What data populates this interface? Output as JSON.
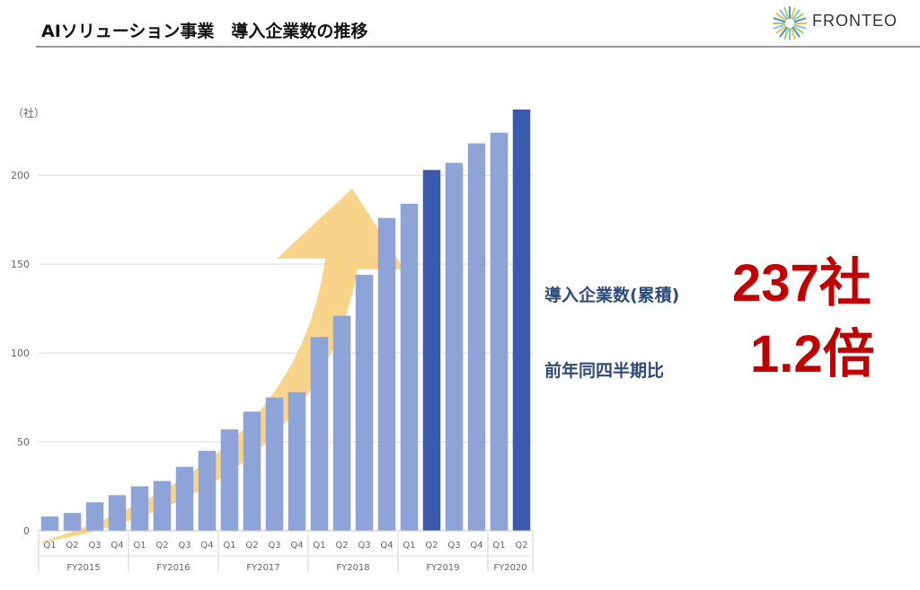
{
  "header": {
    "title": "AIソリューション事業　導入企業数の推移",
    "logo_text": "FRONTEO"
  },
  "stats": {
    "cumulative_label": "導入企業数(累積)",
    "cumulative_value": "237社",
    "yoy_label": "前年同四半期比",
    "yoy_value": "1.2倍"
  },
  "colors": {
    "bar": "#8ea4d9",
    "bar_highlight": "#3a5aad",
    "arrow": "#f7cf7e",
    "stat_value": "#c00000",
    "stat_label": "#2f4b7c"
  },
  "chart_data": {
    "type": "bar",
    "y_unit_label": "（社）",
    "ylim": [
      0,
      237
    ],
    "yticks": [
      0,
      50,
      100,
      150,
      200
    ],
    "grid": true,
    "categories": [
      "Q1",
      "Q2",
      "Q3",
      "Q4",
      "Q1",
      "Q2",
      "Q3",
      "Q4",
      "Q1",
      "Q2",
      "Q3",
      "Q4",
      "Q1",
      "Q2",
      "Q3",
      "Q4",
      "Q1",
      "Q2",
      "Q3",
      "Q4",
      "Q1",
      "Q2"
    ],
    "groups": [
      {
        "label": "FY2015",
        "count": 4
      },
      {
        "label": "FY2016",
        "count": 4
      },
      {
        "label": "FY2017",
        "count": 4
      },
      {
        "label": "FY2018",
        "count": 4
      },
      {
        "label": "FY2019",
        "count": 4
      },
      {
        "label": "FY2020",
        "count": 2
      }
    ],
    "values": [
      8,
      10,
      16,
      20,
      25,
      28,
      36,
      45,
      57,
      67,
      75,
      78,
      109,
      121,
      144,
      176,
      184,
      203,
      207,
      218,
      224,
      237
    ],
    "highlighted": [
      false,
      false,
      false,
      false,
      false,
      false,
      false,
      false,
      false,
      false,
      false,
      false,
      false,
      false,
      false,
      false,
      false,
      true,
      false,
      false,
      false,
      true
    ]
  }
}
